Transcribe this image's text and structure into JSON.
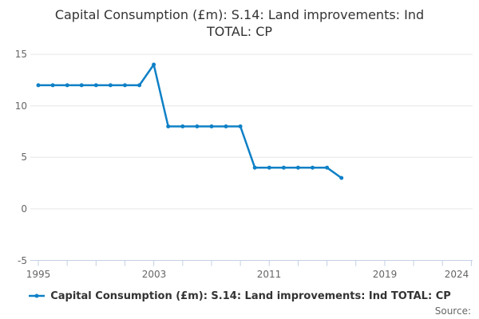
{
  "title": {
    "line1": "Capital Consumption (£m): S.14: Land improvements: Ind",
    "line2": "TOTAL: CP"
  },
  "legend": {
    "label": "Capital Consumption (£m): S.14: Land improvements: Ind TOTAL: CP"
  },
  "footer": {
    "source_label": "Source:"
  },
  "colors": {
    "line": "#0e80c6",
    "grid": "#e6e6e6",
    "axis": "#c3d0e2",
    "axis_text": "#666666",
    "title_text": "#333333",
    "legend_text": "#333333"
  },
  "chart_data": {
    "type": "line",
    "title": "Capital Consumption (£m): S.14: Land improvements: Ind TOTAL: CP",
    "xlabel": "",
    "ylabel": "",
    "x": [
      1995,
      1996,
      1997,
      1998,
      1999,
      2000,
      2001,
      2002,
      2003,
      2004,
      2005,
      2006,
      2007,
      2008,
      2009,
      2010,
      2011,
      2012,
      2013,
      2014,
      2015,
      2016
    ],
    "series": [
      {
        "name": "Capital Consumption (£m): S.14: Land improvements: Ind TOTAL: CP",
        "values": [
          12,
          12,
          12,
          12,
          12,
          12,
          12,
          12,
          14,
          8,
          8,
          8,
          8,
          8,
          8,
          4,
          4,
          4,
          4,
          4,
          4,
          3
        ]
      }
    ],
    "ylim": [
      -5,
      15
    ],
    "xlim": [
      1994.2,
      2025.2
    ],
    "y_ticks": [
      15,
      10,
      5,
      0,
      -5
    ],
    "y_tick_labels": [
      "15",
      "10",
      "5",
      "0",
      "-5"
    ],
    "x_tick_label_years": [
      1995,
      2003,
      2011,
      2019,
      2024
    ],
    "x_tick_labels": [
      "1995",
      "2003",
      "2011",
      "2019",
      "2024"
    ],
    "minor_tick_years": [
      1995,
      1997,
      1999,
      2001,
      2003,
      2005,
      2007,
      2009,
      2011,
      2013,
      2015,
      2017,
      2019,
      2021,
      2023,
      2025
    ],
    "grid": true,
    "legend_position": "bottom"
  }
}
